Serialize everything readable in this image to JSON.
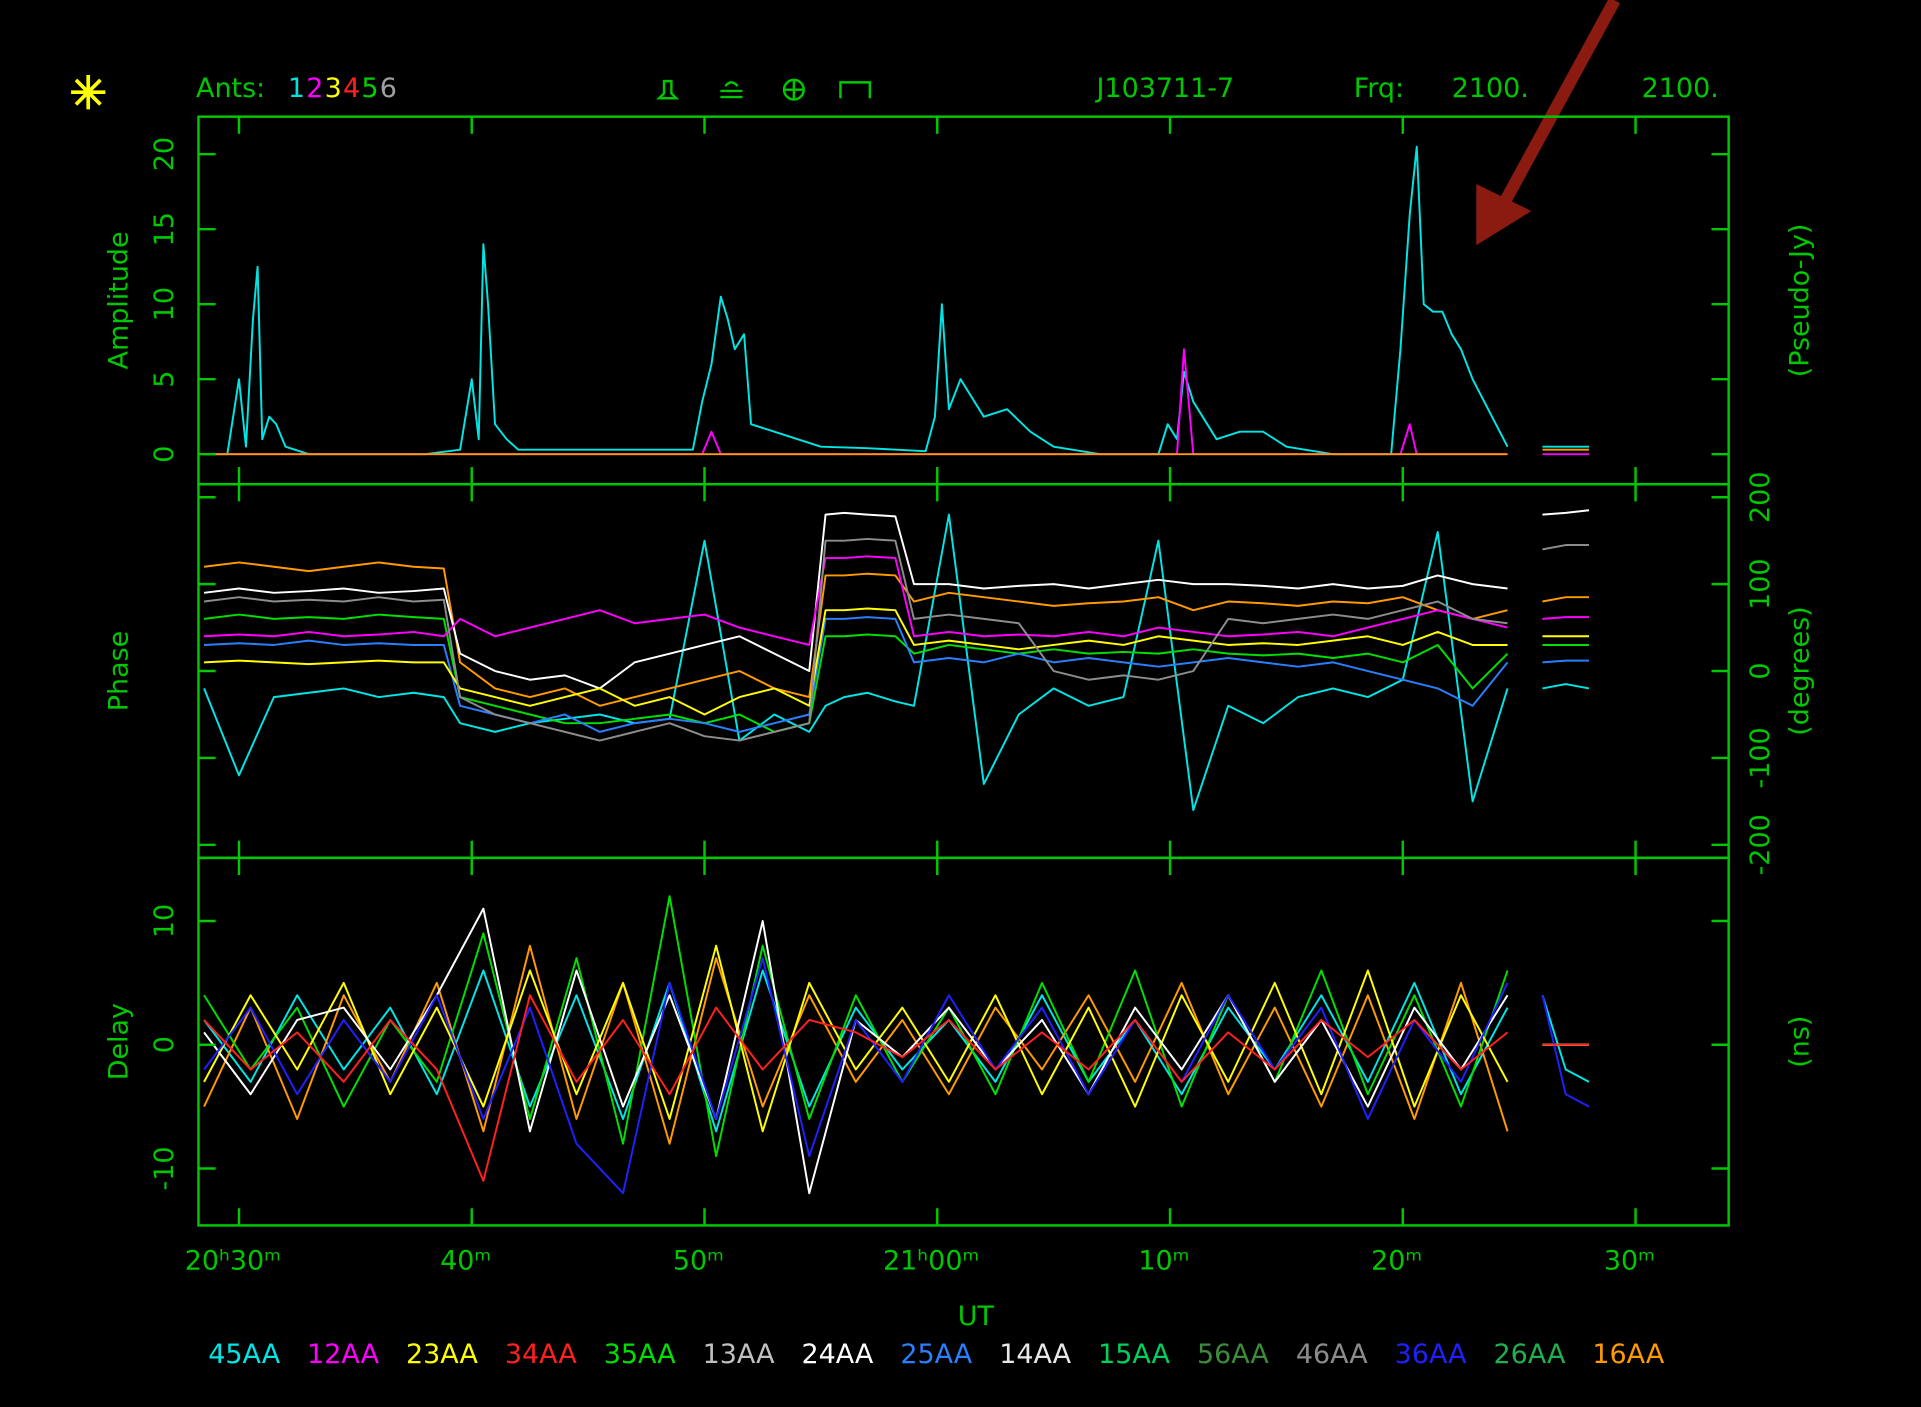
{
  "header": {
    "ants_label": "Ants:",
    "ants": [
      {
        "label": "1",
        "color": "#00e0e0"
      },
      {
        "label": "2",
        "color": "#ff00ff"
      },
      {
        "label": "3",
        "color": "#ffff00"
      },
      {
        "label": "4",
        "color": "#ff2020"
      },
      {
        "label": "5",
        "color": "#00d000"
      },
      {
        "label": "6",
        "color": "#a0a0a0"
      }
    ],
    "source": "J103711-7",
    "freq_label": "Frq:",
    "freq_values": [
      "2100.",
      "2100."
    ]
  },
  "legend": [
    {
      "name": "45AA",
      "color": "#00e5e5"
    },
    {
      "name": "12AA",
      "color": "#ff00ff"
    },
    {
      "name": "23AA",
      "color": "#ffff00"
    },
    {
      "name": "34AA",
      "color": "#ff2020"
    },
    {
      "name": "35AA",
      "color": "#00e000"
    },
    {
      "name": "13AA",
      "color": "#c0c0c0"
    },
    {
      "name": "24AA",
      "color": "#ffffff"
    },
    {
      "name": "25AA",
      "color": "#2a7fff"
    },
    {
      "name": "14AA",
      "color": "#e8e8e8"
    },
    {
      "name": "15AA",
      "color": "#00d060"
    },
    {
      "name": "56AA",
      "color": "#3c8c3c"
    },
    {
      "name": "46AA",
      "color": "#8c8c8c"
    },
    {
      "name": "36AA",
      "color": "#2020ff"
    },
    {
      "name": "26AA",
      "color": "#20b050"
    },
    {
      "name": "16AA",
      "color": "#ff9a00"
    }
  ],
  "chart_data": [
    {
      "type": "line",
      "ylabel": "Amplitude",
      "ylabel_right": "(Pseudo-Jy)",
      "ytick_side": "left",
      "xlim": [
        28.26,
        94
      ],
      "ylim": [
        -2,
        22.5
      ],
      "yticks": [
        0,
        5,
        10,
        15,
        20
      ],
      "x": [
        28.5,
        29.5,
        30.0,
        30.3,
        30.6,
        30.8,
        31.0,
        31.3,
        31.6,
        32.0,
        33,
        35,
        38,
        39.5,
        40.0,
        40.3,
        40.5,
        40.7,
        41.0,
        41.5,
        42,
        45,
        49.5,
        49.9,
        50.3,
        50.7,
        51.0,
        51.3,
        51.7,
        52,
        53,
        54,
        55,
        57,
        59.5,
        59.9,
        60.2,
        60.5,
        61,
        62,
        63,
        64,
        65,
        67,
        69.5,
        69.9,
        70.3,
        70.6,
        71,
        72,
        73,
        74,
        75,
        77,
        79.5,
        79.9,
        80.3,
        80.6,
        80.9,
        81.3,
        81.7,
        82.1,
        82.5,
        83,
        83.5,
        84,
        84.5,
        85.2,
        86,
        87,
        88
      ],
      "series": [
        {
          "name": "45AA",
          "color": "#00e5e5",
          "values": [
            0,
            0,
            5,
            0.5,
            9,
            12.5,
            1,
            2.5,
            2,
            0.5,
            0,
            0,
            0,
            0.3,
            5,
            1,
            14,
            10,
            2,
            1,
            0.3,
            0.3,
            0.3,
            3.5,
            6,
            10.5,
            9,
            7,
            8,
            2,
            1.5,
            1,
            0.5,
            0.4,
            0.2,
            2.5,
            10,
            3,
            5,
            2.5,
            3,
            1.5,
            0.5,
            0,
            0,
            2,
            1,
            5.5,
            3.5,
            1,
            1.5,
            1.5,
            0.5,
            0,
            0,
            7,
            16,
            20.5,
            10,
            9.5,
            9.5,
            8,
            7,
            5,
            3.5,
            2,
            0.5,
            null,
            0.5,
            0.5,
            0.5
          ]
        },
        {
          "name": "12AA",
          "color": "#ff00ff",
          "values": [
            0,
            0,
            0,
            0,
            0,
            0,
            0,
            0,
            0,
            0,
            0,
            0,
            0,
            0,
            0,
            0,
            0,
            0,
            0,
            0,
            0,
            0,
            0,
            0,
            1.5,
            0,
            0,
            0,
            0,
            0,
            0,
            0,
            0,
            0,
            0,
            0,
            0,
            0,
            0,
            0,
            0,
            0,
            0,
            0,
            0,
            0,
            0,
            7,
            0,
            0,
            0,
            0,
            0,
            0,
            0,
            0,
            2,
            0,
            0,
            0,
            0,
            0,
            0,
            0,
            0,
            0,
            0,
            null,
            0,
            0,
            0
          ]
        },
        {
          "name": "16AA",
          "color": "#ff9a00",
          "values": [
            0,
            0,
            0,
            0,
            0,
            0,
            0,
            0,
            0,
            0,
            0,
            0,
            0,
            0,
            0,
            0,
            0,
            0,
            0,
            0,
            0,
            0,
            0,
            0,
            0,
            0,
            0,
            0,
            0,
            0,
            0,
            0,
            0,
            0,
            0,
            0,
            0,
            0,
            0,
            0,
            0,
            0,
            0,
            0,
            0,
            0,
            0,
            0,
            0,
            0,
            0,
            0,
            0,
            0,
            0,
            0,
            0,
            0,
            0,
            0,
            0,
            0,
            0,
            0,
            0,
            0,
            0,
            null,
            0.3,
            0.3,
            0.3
          ]
        }
      ]
    },
    {
      "type": "line",
      "ylabel": "Phase",
      "ylabel_right": "(degrees)",
      "ytick_side": "right",
      "xlim": [
        28.26,
        94
      ],
      "ylim": [
        -215,
        215
      ],
      "yticks": [
        -200,
        -100,
        0,
        100,
        200
      ],
      "x": [
        28.5,
        30,
        31.5,
        33,
        34.5,
        36,
        37.5,
        38.8,
        39.5,
        41,
        42.5,
        44,
        45.5,
        47,
        48.5,
        50,
        51.5,
        53,
        54.5,
        55.2,
        56,
        57,
        58.2,
        59,
        60.5,
        62,
        63.5,
        65,
        66.5,
        68,
        69.5,
        71,
        72.5,
        74,
        75.5,
        77,
        78.5,
        80,
        81.5,
        83,
        84.5,
        85.2,
        86,
        87,
        88
      ],
      "series": [
        {
          "name": "45AA",
          "color": "#00e5e5",
          "values": [
            -20,
            -120,
            -30,
            -25,
            -20,
            -30,
            -25,
            -30,
            -60,
            -70,
            -60,
            -55,
            -50,
            -60,
            -55,
            150,
            -80,
            -50,
            -70,
            -40,
            -30,
            -25,
            -35,
            -40,
            180,
            -130,
            -50,
            -20,
            -40,
            -30,
            150,
            -160,
            -40,
            -60,
            -30,
            -20,
            -30,
            -10,
            160,
            -150,
            -20,
            null,
            -20,
            -15,
            -20
          ]
        },
        {
          "name": "16AA",
          "color": "#ff9a00",
          "values": [
            120,
            125,
            120,
            115,
            120,
            125,
            120,
            118,
            10,
            -20,
            -30,
            -20,
            -40,
            -30,
            -20,
            -10,
            0,
            -20,
            -30,
            110,
            110,
            112,
            110,
            80,
            90,
            85,
            80,
            75,
            78,
            80,
            85,
            70,
            80,
            78,
            75,
            80,
            78,
            85,
            70,
            60,
            70,
            null,
            80,
            85,
            85
          ]
        },
        {
          "name": "24AA",
          "color": "#ffffff",
          "values": [
            90,
            95,
            90,
            92,
            95,
            90,
            92,
            95,
            20,
            0,
            -10,
            -5,
            -20,
            10,
            20,
            30,
            40,
            20,
            0,
            180,
            182,
            180,
            178,
            100,
            100,
            95,
            98,
            100,
            95,
            100,
            105,
            100,
            100,
            98,
            95,
            100,
            95,
            98,
            110,
            100,
            95,
            null,
            180,
            182,
            185
          ]
        },
        {
          "name": "35AA",
          "color": "#00e000",
          "values": [
            60,
            65,
            60,
            62,
            60,
            65,
            62,
            60,
            -30,
            -40,
            -50,
            -60,
            -60,
            -55,
            -50,
            -60,
            -50,
            -70,
            -60,
            40,
            40,
            42,
            40,
            20,
            30,
            25,
            20,
            25,
            20,
            22,
            20,
            25,
            20,
            18,
            20,
            15,
            20,
            10,
            30,
            -20,
            20,
            null,
            30,
            30,
            30
          ]
        },
        {
          "name": "12AA",
          "color": "#ff00ff",
          "values": [
            40,
            42,
            40,
            45,
            40,
            42,
            45,
            40,
            60,
            40,
            50,
            60,
            70,
            55,
            60,
            65,
            50,
            40,
            30,
            130,
            130,
            132,
            130,
            40,
            45,
            40,
            42,
            40,
            45,
            40,
            50,
            45,
            40,
            42,
            45,
            40,
            50,
            60,
            70,
            60,
            50,
            null,
            60,
            62,
            62
          ]
        },
        {
          "name": "25AA",
          "color": "#2a7fff",
          "values": [
            30,
            32,
            30,
            35,
            30,
            32,
            30,
            30,
            -40,
            -50,
            -60,
            -50,
            -70,
            -60,
            -55,
            -60,
            -70,
            -60,
            -50,
            60,
            60,
            62,
            60,
            10,
            15,
            10,
            20,
            10,
            15,
            10,
            5,
            10,
            15,
            10,
            5,
            10,
            0,
            -10,
            -20,
            -40,
            10,
            null,
            10,
            12,
            12
          ]
        },
        {
          "name": "23AA",
          "color": "#ffff00",
          "values": [
            10,
            12,
            10,
            8,
            10,
            12,
            10,
            10,
            -20,
            -30,
            -40,
            -30,
            -20,
            -40,
            -30,
            -50,
            -30,
            -20,
            -40,
            70,
            70,
            72,
            70,
            30,
            35,
            30,
            25,
            30,
            35,
            30,
            40,
            35,
            30,
            32,
            30,
            35,
            40,
            30,
            45,
            30,
            30,
            null,
            40,
            40,
            40
          ]
        },
        {
          "name": "46AA",
          "color": "#8c8c8c",
          "values": [
            80,
            85,
            80,
            82,
            80,
            85,
            80,
            82,
            -30,
            -50,
            -60,
            -70,
            -80,
            -70,
            -60,
            -75,
            -80,
            -70,
            -60,
            150,
            150,
            152,
            150,
            60,
            65,
            60,
            55,
            0,
            -10,
            -5,
            -10,
            0,
            60,
            55,
            60,
            65,
            60,
            70,
            80,
            60,
            55,
            null,
            140,
            145,
            145
          ]
        }
      ]
    },
    {
      "type": "line",
      "ylabel": "Delay",
      "ylabel_right": "(ns)",
      "ytick_side": "left",
      "xlabel": "UT",
      "xlim": [
        28.26,
        94
      ],
      "ylim": [
        -14.6,
        15.1
      ],
      "yticks": [
        -10,
        0,
        10
      ],
      "xticks": [
        {
          "value": 30,
          "label": "20ʰ30ᵐ"
        },
        {
          "value": 40,
          "label": "40ᵐ"
        },
        {
          "value": 50,
          "label": "50ᵐ"
        },
        {
          "value": 60,
          "label": "21ʰ00ᵐ"
        },
        {
          "value": 70,
          "label": "10ᵐ"
        },
        {
          "value": 80,
          "label": "20ᵐ"
        },
        {
          "value": 90,
          "label": "30ᵐ"
        }
      ],
      "x": [
        28.5,
        30.5,
        32.5,
        34.5,
        36.5,
        38.5,
        40.5,
        42.5,
        44.5,
        46.5,
        48.5,
        50.5,
        52.5,
        54.5,
        56.5,
        58.5,
        60.5,
        62.5,
        64.5,
        66.5,
        68.5,
        70.5,
        72.5,
        74.5,
        76.5,
        78.5,
        80.5,
        82.5,
        84.5,
        85.2,
        86,
        87,
        88
      ],
      "series": [
        {
          "name": "45AA",
          "color": "#00e5e5",
          "values": [
            2,
            -3,
            4,
            -2,
            3,
            -4,
            6,
            -5,
            4,
            -6,
            5,
            -7,
            6,
            -5,
            3,
            -2,
            2,
            -3,
            4,
            -3,
            2,
            -4,
            3,
            -2,
            4,
            -3,
            5,
            -4,
            3,
            null,
            4,
            -2,
            -3
          ]
        },
        {
          "name": "16AA",
          "color": "#ff9a00",
          "values": [
            -5,
            3,
            -6,
            4,
            -3,
            5,
            -7,
            8,
            -6,
            5,
            -8,
            7,
            -5,
            4,
            -3,
            2,
            -4,
            3,
            -2,
            4,
            -3,
            5,
            -4,
            3,
            -5,
            4,
            -6,
            5,
            -7,
            null,
            0,
            0,
            0
          ]
        },
        {
          "name": "35AA",
          "color": "#00e000",
          "values": [
            4,
            -2,
            3,
            -5,
            2,
            -3,
            9,
            -6,
            7,
            -8,
            12,
            -9,
            8,
            -6,
            4,
            -3,
            3,
            -4,
            5,
            -3,
            6,
            -5,
            4,
            -3,
            6,
            -4,
            4,
            -5,
            6,
            null,
            0,
            0,
            0
          ]
        },
        {
          "name": "23AA",
          "color": "#ffff00",
          "values": [
            -3,
            4,
            -2,
            5,
            -4,
            3,
            -5,
            6,
            -4,
            5,
            -6,
            8,
            -7,
            5,
            -2,
            3,
            -3,
            4,
            -4,
            3,
            -5,
            4,
            -3,
            5,
            -4,
            6,
            -5,
            4,
            -3,
            null,
            0,
            0,
            0
          ]
        },
        {
          "name": "24AA",
          "color": "#ffffff",
          "values": [
            1,
            -4,
            2,
            3,
            -2,
            4,
            11,
            -7,
            6,
            -5,
            4,
            -6,
            10,
            -12,
            2,
            -1,
            3,
            -2,
            2,
            -4,
            3,
            -2,
            4,
            -3,
            2,
            -5,
            3,
            -2,
            4,
            null,
            0,
            0,
            0
          ]
        },
        {
          "name": "36AA",
          "color": "#2020ff",
          "values": [
            -2,
            3,
            -4,
            2,
            -3,
            4,
            -6,
            3,
            -8,
            -12,
            5,
            -6,
            7,
            -9,
            2,
            -3,
            4,
            -2,
            3,
            -4,
            2,
            -3,
            4,
            -2,
            3,
            -6,
            2,
            -3,
            5,
            null,
            4,
            -4,
            -5
          ]
        },
        {
          "name": "34AA",
          "color": "#ff2020",
          "values": [
            2,
            -2,
            1,
            -3,
            2,
            -2,
            -11,
            4,
            -3,
            2,
            -4,
            3,
            -2,
            2,
            1,
            -1,
            2,
            -2,
            1,
            -2,
            2,
            -3,
            1,
            -2,
            2,
            -1,
            2,
            -2,
            1,
            null,
            0,
            0,
            0
          ]
        }
      ]
    }
  ]
}
